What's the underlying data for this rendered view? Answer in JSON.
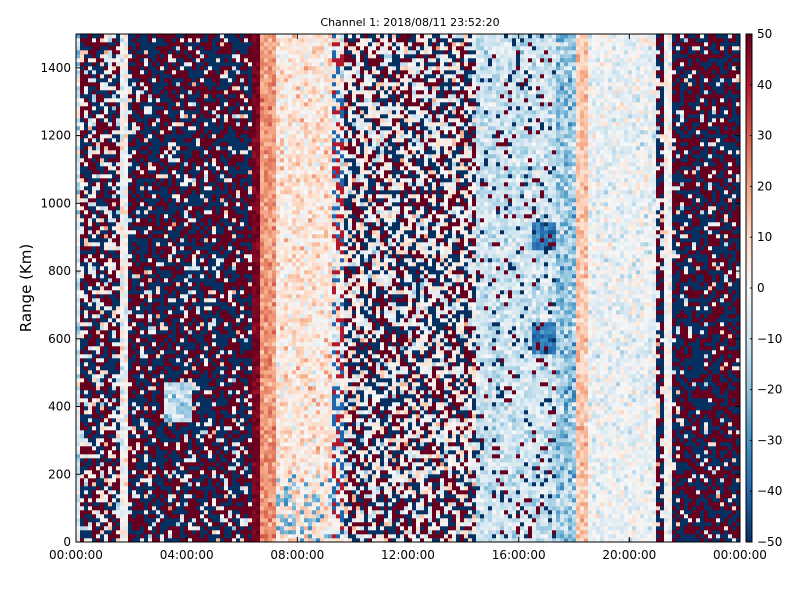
{
  "chart_data": {
    "type": "heatmap",
    "title": "Channel 1: 2018/08/11 23:52:20",
    "xlabel": "",
    "ylabel": "Range (Km)",
    "x_ticks": [
      "00:00:00",
      "04:00:00",
      "08:00:00",
      "12:00:00",
      "16:00:00",
      "20:00:00",
      "00:00:00"
    ],
    "x_range_hours": [
      0,
      24
    ],
    "y_ticks": [
      0,
      200,
      400,
      600,
      800,
      1000,
      1200,
      1400
    ],
    "ylim": [
      0,
      1500
    ],
    "colorbar": {
      "ticks": [
        50,
        40,
        30,
        20,
        10,
        0,
        -10,
        -20,
        -30,
        -40,
        -50
      ],
      "tick_labels": [
        "50",
        "40",
        "30",
        "20",
        "10",
        "0",
        "−10",
        "−20",
        "−30",
        "−40",
        "−50"
      ],
      "range": [
        -50,
        50
      ],
      "colormap": "RdBu_r",
      "colors": [
        "#053061",
        "#2166ac",
        "#4393c3",
        "#92c5de",
        "#d1e5f0",
        "#f7f7f7",
        "#fddbc7",
        "#f4a582",
        "#d6604d",
        "#b2182b",
        "#67001f"
      ]
    },
    "grid": false,
    "legend": "none"
  }
}
